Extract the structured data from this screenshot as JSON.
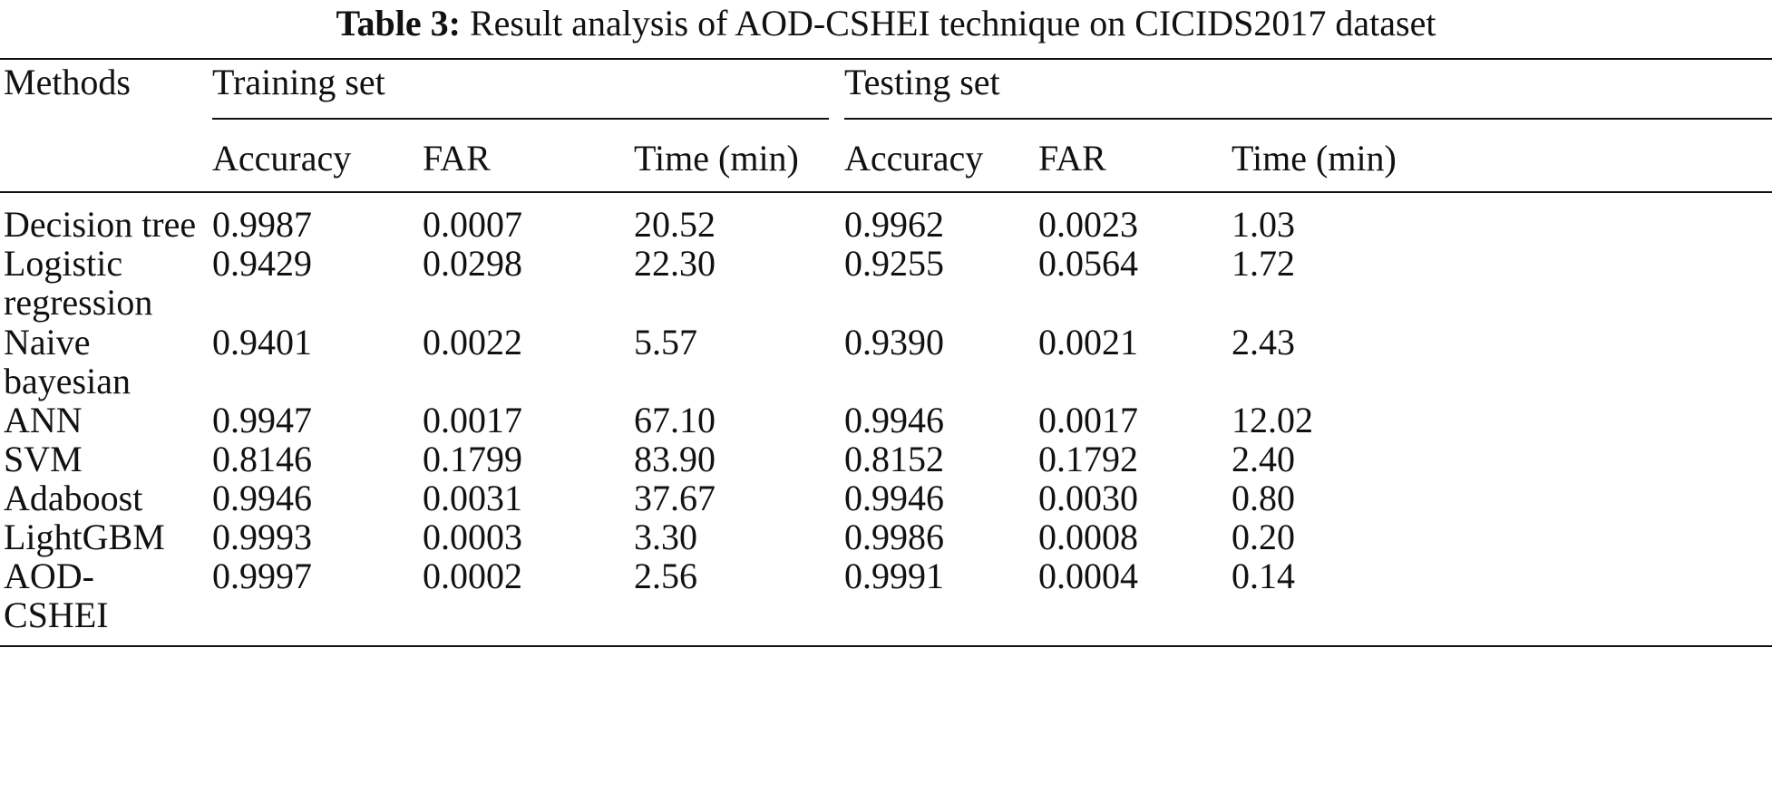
{
  "caption": {
    "label": "Table 3:",
    "text": "Result analysis of AOD-CSHEI technique on CICIDS2017 dataset"
  },
  "header": {
    "methods": "Methods",
    "groups": [
      "Training set",
      "Testing set"
    ],
    "columns": [
      "Accuracy",
      "FAR",
      "Time (min)",
      "Accuracy",
      "FAR",
      "Time (min)"
    ]
  },
  "rows": [
    {
      "method_lines": [
        "Decision tree"
      ],
      "values": [
        "0.9987",
        "0.0007",
        "20.52",
        "0.9962",
        "0.0023",
        "1.03"
      ]
    },
    {
      "method_lines": [
        "Logistic",
        "regression"
      ],
      "values": [
        "0.9429",
        "0.0298",
        "22.30",
        "0.9255",
        "0.0564",
        "1.72"
      ]
    },
    {
      "method_lines": [
        "Naive",
        "bayesian"
      ],
      "values": [
        "0.9401",
        "0.0022",
        "5.57",
        "0.9390",
        "0.0021",
        "2.43"
      ]
    },
    {
      "method_lines": [
        "ANN"
      ],
      "values": [
        "0.9947",
        "0.0017",
        "67.10",
        "0.9946",
        "0.0017",
        "12.02"
      ]
    },
    {
      "method_lines": [
        "SVM"
      ],
      "values": [
        "0.8146",
        "0.1799",
        "83.90",
        "0.8152",
        "0.1792",
        "2.40"
      ]
    },
    {
      "method_lines": [
        "Adaboost"
      ],
      "values": [
        "0.9946",
        "0.0031",
        "37.67",
        "0.9946",
        "0.0030",
        "0.80"
      ]
    },
    {
      "method_lines": [
        "LightGBM"
      ],
      "values": [
        "0.9993",
        "0.0003",
        "3.30",
        "0.9986",
        "0.0008",
        "0.20"
      ]
    },
    {
      "method_lines": [
        "AOD-",
        "CSHEI"
      ],
      "values": [
        "0.9997",
        "0.0002",
        "2.56",
        "0.9991",
        "0.0004",
        "0.14"
      ]
    }
  ]
}
